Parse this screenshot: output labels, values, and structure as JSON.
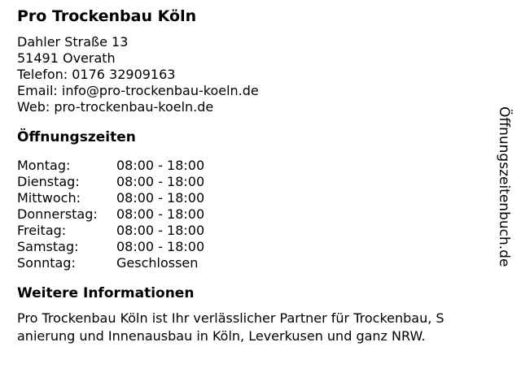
{
  "page": {
    "background_color": "#ffffff",
    "text_color": "#000000"
  },
  "header": {
    "title": "Pro Trockenbau Köln"
  },
  "contact": {
    "lines": [
      "Dahler Straße 13",
      "51491 Overath",
      "Telefon: 0176 32909163",
      "Email: info@pro-trockenbau-koeln.de",
      "Web: pro-trockenbau-koeln.de"
    ]
  },
  "hours": {
    "title": "Öffnungszeiten",
    "rows": [
      {
        "day": "Montag:",
        "time": "08:00 - 18:00"
      },
      {
        "day": "Dienstag:",
        "time": "08:00 - 18:00"
      },
      {
        "day": "Mittwoch:",
        "time": "08:00 - 18:00"
      },
      {
        "day": "Donnerstag:",
        "time": "08:00 - 18:00"
      },
      {
        "day": "Freitag:",
        "time": "08:00 - 18:00"
      },
      {
        "day": "Samstag:",
        "time": "08:00 - 18:00"
      },
      {
        "day": "Sonntag:",
        "time": "Geschlossen"
      }
    ]
  },
  "info": {
    "title": "Weitere Informationen",
    "lines": [
      "Pro Trockenbau Köln ist Ihr verlässlicher Partner für Trockenbau, S",
      "anierung und Innenausbau in Köln, Leverkusen und ganz NRW."
    ],
    "full_text": "Pro Trockenbau Köln ist Ihr verlässlicher Partner für Trockenbau, Sanierung und Innenausbau in Köln, Leverkusen und ganz NRW."
  },
  "watermark": {
    "text": "Öffnungszeitenbuch.de"
  }
}
